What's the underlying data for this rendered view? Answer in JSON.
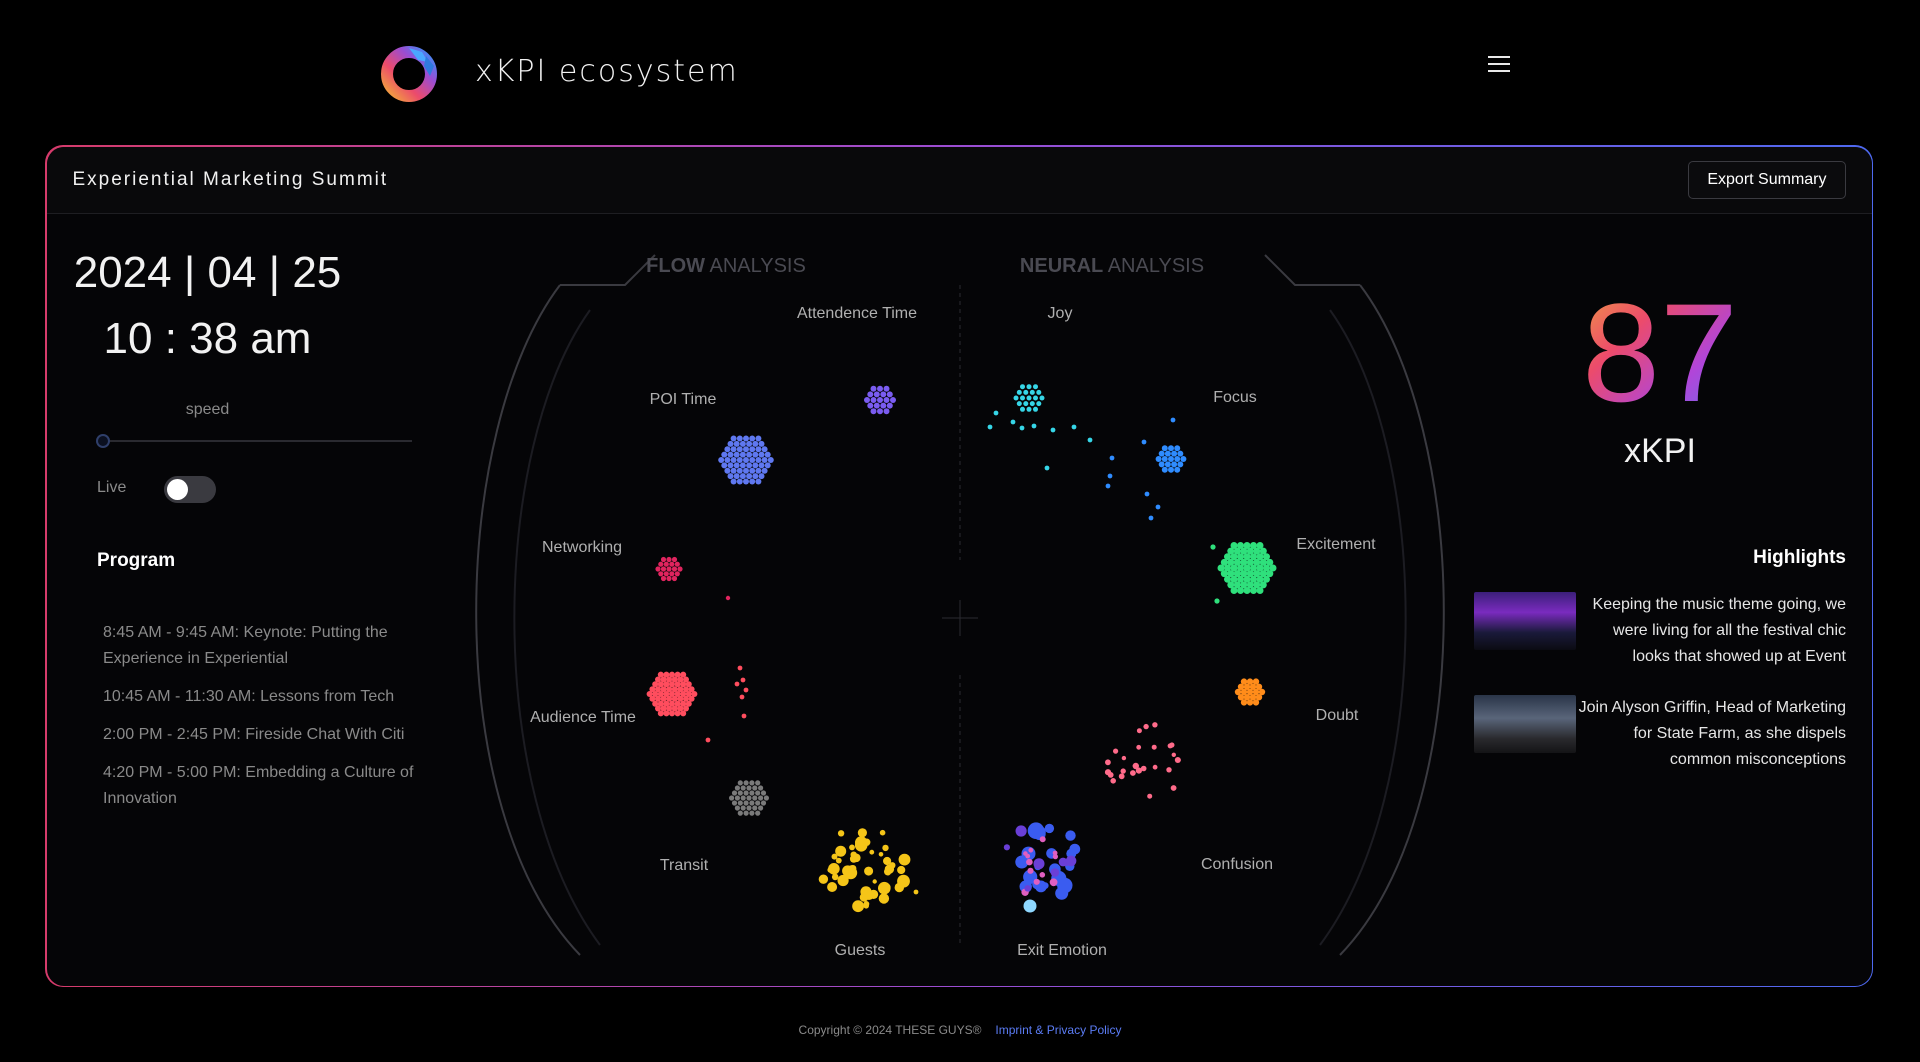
{
  "brand": {
    "name": "xKPI ecosystem"
  },
  "header": {
    "menu_icon": "hamburger-menu-icon"
  },
  "panel": {
    "title": "Experiential Marketing Summit",
    "export_label": "Export Summary"
  },
  "left": {
    "date": "2024 | 04 | 25",
    "time": "10 : 38 am",
    "speed_label": "speed",
    "speed_value": 0,
    "live_label": "Live",
    "live_on": false,
    "program_title": "Program",
    "program": [
      "8:45 AM - 9:45 AM: Keynote: Putting the Experience in Experiential",
      "10:45 AM - 11:30 AM: Lessons from Tech",
      "2:00 PM - 2:45 PM: Fireside Chat With Citi",
      "4:20 PM - 5:00 PM: Embedding a Culture of Innovation"
    ]
  },
  "viz": {
    "flow_bold": "FLOW",
    "flow_rest": " ANALYSIS",
    "neural_bold": "NEURAL",
    "neural_rest": " ANALYSIS",
    "flow_labels": [
      "Attendence Time",
      "POI Time",
      "Networking",
      "Audience Time",
      "Transit",
      "Guests"
    ],
    "neural_labels": [
      "Joy",
      "Focus",
      "Excitement",
      "Doubt",
      "Confusion",
      "Exit Emotion"
    ]
  },
  "kpi": {
    "value": "87",
    "label": "xKPI"
  },
  "highlights": {
    "title": "Highlights",
    "items": [
      {
        "text": "Keeping the music theme going, we were living for all the festival chic looks that showed up at Event"
      },
      {
        "text": "Join Alyson Griffin, Head of Marketing for State Farm, as she dispels common misconceptions"
      }
    ]
  },
  "footer": {
    "copyright": "Copyright © 2024 THESE GUYS®",
    "link": "Imprint & Privacy Policy"
  },
  "colors": {
    "blue": "#5f78f0",
    "violet": "#7a5cf0",
    "crimson": "#e0245e",
    "coral": "#ff4d5e",
    "grey": "#7a7a7a",
    "yellow": "#f5c518",
    "cyan": "#36d6e7",
    "azure": "#2f8cff",
    "green": "#2fe07c",
    "orange": "#ff8c1a",
    "pink": "#ff6b8a"
  }
}
